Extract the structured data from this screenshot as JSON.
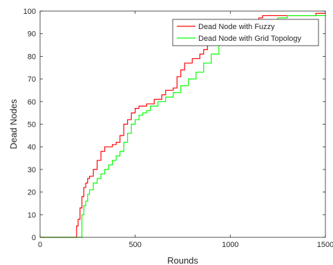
{
  "chart_data": {
    "type": "line",
    "title": "",
    "xlabel": "Rounds",
    "ylabel": "Dead Nodes",
    "xlim": [
      0,
      1500
    ],
    "ylim": [
      0,
      100
    ],
    "xticks": [
      0,
      500,
      1000,
      1500
    ],
    "yticks": [
      0,
      10,
      20,
      30,
      40,
      50,
      60,
      70,
      80,
      90,
      100
    ],
    "grid": false,
    "legend_position": "top-right",
    "series": [
      {
        "name": "Dead Node with Fuzzy",
        "color": "#ff0000",
        "x": [
          0,
          182,
          192,
          200,
          210,
          220,
          230,
          240,
          250,
          260,
          280,
          300,
          320,
          340,
          360,
          380,
          400,
          420,
          440,
          460,
          480,
          500,
          520,
          560,
          600,
          640,
          660,
          700,
          720,
          740,
          760,
          800,
          840,
          860,
          880,
          900,
          940,
          980,
          1020,
          1060,
          1100,
          1150,
          1170,
          1300,
          1450,
          1500
        ],
        "y": [
          0,
          0,
          5,
          8,
          13,
          18,
          22,
          24,
          26,
          27,
          30,
          34,
          38,
          40,
          40,
          41,
          42,
          45,
          50,
          52,
          55,
          57,
          58,
          59,
          61,
          63,
          65,
          66,
          71,
          74,
          77,
          79,
          81,
          83,
          85,
          87,
          89,
          91,
          93,
          95,
          96,
          97,
          98,
          98,
          99,
          99
        ]
      },
      {
        "name": "Dead Node with Grid Topology",
        "color": "#00ff00",
        "x": [
          0,
          218,
          220,
          230,
          240,
          250,
          260,
          280,
          300,
          320,
          340,
          360,
          380,
          400,
          420,
          440,
          460,
          480,
          500,
          520,
          540,
          560,
          580,
          620,
          660,
          700,
          740,
          780,
          820,
          860,
          900,
          940,
          980,
          1020,
          1060,
          1100,
          1150,
          1200,
          1250,
          1300,
          1400,
          1500
        ],
        "y": [
          0,
          0,
          10,
          14,
          16,
          19,
          21,
          24,
          26,
          28,
          30,
          32,
          34,
          36,
          38,
          42,
          46,
          50,
          52,
          54,
          55,
          56,
          58,
          60,
          62,
          64,
          67,
          70,
          73,
          77,
          81,
          85,
          88,
          90,
          92,
          94,
          95,
          96,
          97,
          98,
          98,
          98
        ]
      }
    ]
  }
}
